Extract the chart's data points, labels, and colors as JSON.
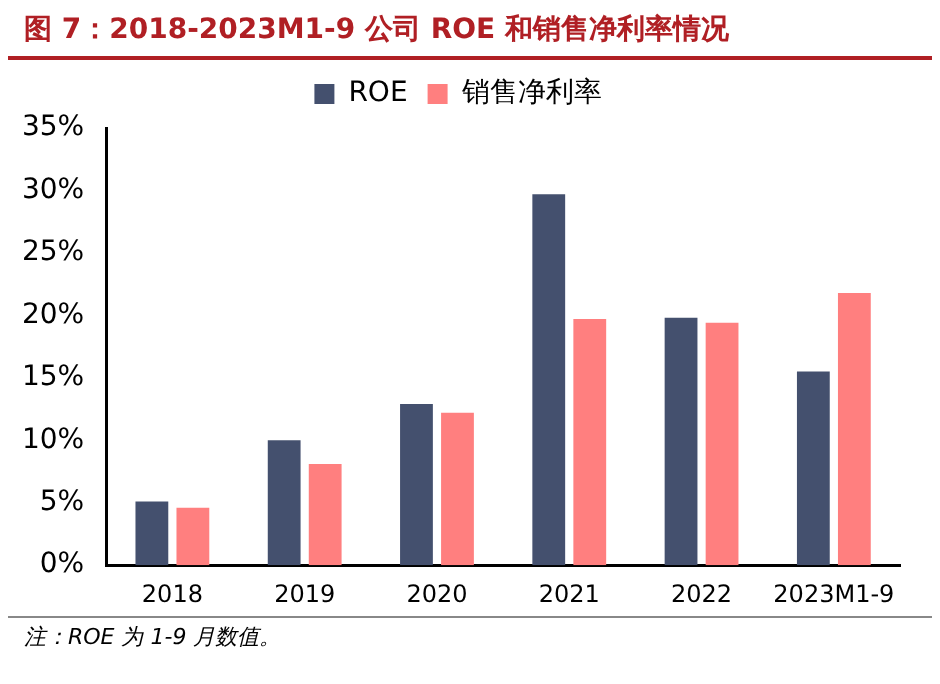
{
  "chart_data": {
    "type": "bar",
    "title": "图 7：2018-2023M1-9 公司 ROE 和销售净利率情况",
    "categories": [
      "2018",
      "2019",
      "2020",
      "2021",
      "2022",
      "2023M1-9"
    ],
    "series": [
      {
        "name": "ROE",
        "color": "#44506e",
        "values": [
          5.1,
          10.0,
          12.9,
          29.7,
          19.8,
          15.5
        ]
      },
      {
        "name": "销售净利率",
        "color": "#ff7f7f",
        "values": [
          4.6,
          8.1,
          12.2,
          19.7,
          19.4,
          21.8
        ]
      }
    ],
    "ylim": [
      0,
      35
    ],
    "yticks": [
      {
        "value": 0,
        "label": "0%"
      },
      {
        "value": 5,
        "label": "5%"
      },
      {
        "value": 10,
        "label": "10%"
      },
      {
        "value": 15,
        "label": "15%"
      },
      {
        "value": 20,
        "label": "20%"
      },
      {
        "value": 25,
        "label": "25%"
      },
      {
        "value": 30,
        "label": "30%"
      },
      {
        "value": 35,
        "label": "35%"
      }
    ],
    "grid": false,
    "legend": "top",
    "annotations": [
      "注：ROE 为 1-9 月数值。"
    ]
  }
}
